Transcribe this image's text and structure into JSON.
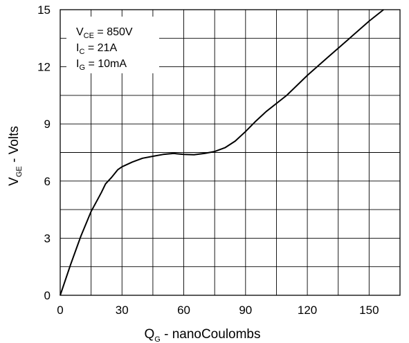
{
  "chart_data": {
    "type": "line",
    "title": "",
    "xlabel": {
      "main": "Q",
      "sub": "G",
      "rest": " - nanoCoulombs"
    },
    "ylabel": {
      "main": "V",
      "sub": "GE",
      "rest": " - Volts"
    },
    "xlim": [
      0,
      165
    ],
    "ylim": [
      0,
      15
    ],
    "x_ticks": [
      0,
      30,
      60,
      90,
      120,
      150
    ],
    "y_ticks": [
      0,
      3,
      6,
      9,
      12,
      15
    ],
    "x_tick_labels": [
      "0",
      "30",
      "60",
      "90",
      "120",
      "150"
    ],
    "y_tick_labels": [
      "0",
      "3",
      "6",
      "9",
      "12",
      "15"
    ],
    "x_grid_step": 15,
    "y_grid_step": 1.5,
    "grid": true,
    "conditions": [
      {
        "main": "V",
        "sub": "CE",
        "rest": " = 850V"
      },
      {
        "main": "I",
        "sub": "C",
        "rest": " = 21A"
      },
      {
        "main": "I",
        "sub": "G",
        "rest": " = 10mA"
      }
    ],
    "series": [
      {
        "color": "#000000",
        "x": [
          0,
          5,
          10,
          15,
          18,
          20,
          22,
          25,
          28,
          30,
          35,
          40,
          45,
          50,
          55,
          60,
          65,
          70,
          75,
          80,
          85,
          90,
          95,
          100,
          110,
          120,
          130,
          140,
          150,
          157
        ],
        "y": [
          0,
          1.6,
          3.1,
          4.4,
          5.0,
          5.4,
          5.85,
          6.2,
          6.6,
          6.75,
          7.0,
          7.2,
          7.3,
          7.4,
          7.45,
          7.4,
          7.38,
          7.45,
          7.55,
          7.75,
          8.1,
          8.6,
          9.15,
          9.65,
          10.5,
          11.55,
          12.5,
          13.45,
          14.4,
          15.0
        ]
      }
    ]
  }
}
